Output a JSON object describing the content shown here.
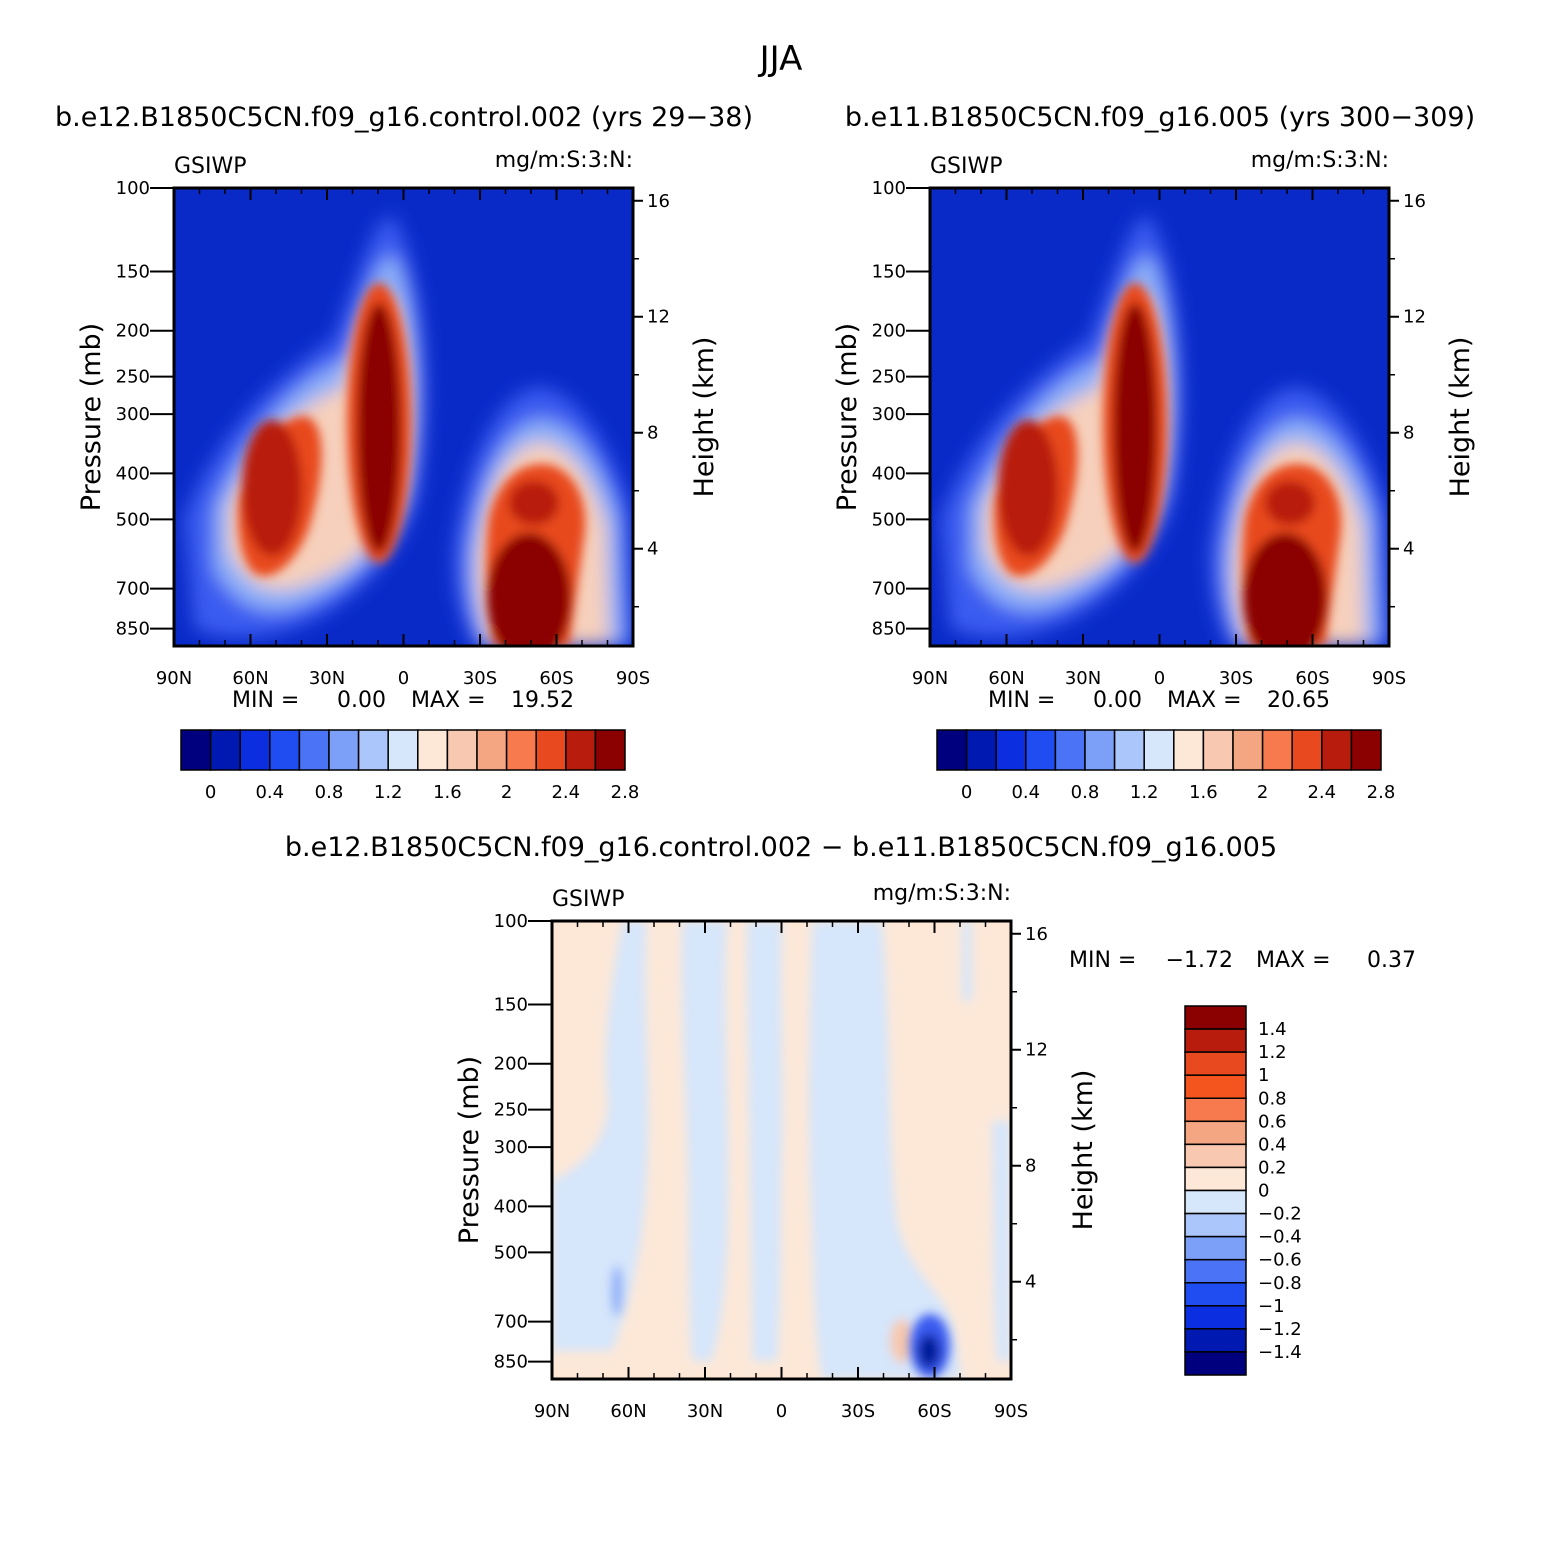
{
  "figure": {
    "title": "JJA"
  },
  "panels": [
    {
      "title": "b.e12.B1850C5CN.f09_g16.control.002 (yrs 29−38)",
      "left_label": "GSIWP",
      "right_label": "mg/m:S:3:N:",
      "ylabel_left": "Pressure (mb)",
      "ylabel_right": "Height (km)",
      "x_ticks": [
        "90N",
        "60N",
        "30N",
        "0",
        "30S",
        "60S",
        "90S"
      ],
      "y_ticks": [
        "100",
        "150",
        "200",
        "250",
        "300",
        "400",
        "500",
        "700",
        "850"
      ],
      "h_ticks": [
        "16",
        "12",
        "8",
        "4"
      ],
      "min_label": "MIN =",
      "min_value": "0.00",
      "max_label": "MAX =",
      "max_value": "19.52",
      "colorbar_labels": [
        "0",
        "0.4",
        "0.8",
        "1.2",
        "1.6",
        "2",
        "2.4",
        "2.8"
      ]
    },
    {
      "title": "b.e11.B1850C5CN.f09_g16.005 (yrs 300−309)",
      "left_label": "GSIWP",
      "right_label": "mg/m:S:3:N:",
      "ylabel_left": "Pressure (mb)",
      "ylabel_right": "Height (km)",
      "x_ticks": [
        "90N",
        "60N",
        "30N",
        "0",
        "30S",
        "60S",
        "90S"
      ],
      "y_ticks": [
        "100",
        "150",
        "200",
        "250",
        "300",
        "400",
        "500",
        "700",
        "850"
      ],
      "h_ticks": [
        "16",
        "12",
        "8",
        "4"
      ],
      "min_label": "MIN =",
      "min_value": "0.00",
      "max_label": "MAX =",
      "max_value": "20.65",
      "colorbar_labels": [
        "0",
        "0.4",
        "0.8",
        "1.2",
        "1.6",
        "2",
        "2.4",
        "2.8"
      ]
    },
    {
      "title": "b.e12.B1850C5CN.f09_g16.control.002 − b.e11.B1850C5CN.f09_g16.005",
      "left_label": "GSIWP",
      "right_label": "mg/m:S:3:N:",
      "ylabel_left": "Pressure (mb)",
      "ylabel_right": "Height (km)",
      "x_ticks": [
        "90N",
        "60N",
        "30N",
        "0",
        "30S",
        "60S",
        "90S"
      ],
      "y_ticks": [
        "100",
        "150",
        "200",
        "250",
        "300",
        "400",
        "500",
        "700",
        "850"
      ],
      "h_ticks": [
        "16",
        "12",
        "8",
        "4"
      ],
      "min_label": "MIN =",
      "min_value": "−1.72",
      "max_label": "MAX =",
      "max_value": "0.37",
      "colorbar_labels": [
        "1.4",
        "1.2",
        "1",
        "0.8",
        "0.6",
        "0.4",
        "0.2",
        "0",
        "−0.2",
        "−0.4",
        "−0.6",
        "−0.8",
        "−1",
        "−1.2",
        "−1.4"
      ]
    }
  ],
  "chart_data": [
    {
      "type": "heatmap",
      "title": "b.e12.B1850C5CN.f09_g16.control.002 (yrs 29−38)",
      "variable": "GSIWP",
      "units": "mg/m:S:3:N:",
      "xlabel": "",
      "ylabel": "Pressure (mb)",
      "ylabel_right": "Height (km)",
      "x_range": [
        90,
        -90
      ],
      "y_range_mb": [
        100,
        850
      ],
      "y_scale": "log",
      "min": 0.0,
      "max": 19.52,
      "colorbar": {
        "levels": [
          0,
          0.2,
          0.4,
          0.6,
          0.8,
          1.0,
          1.2,
          1.4,
          1.6,
          1.8,
          2.0,
          2.2,
          2.4,
          2.6,
          2.8
        ]
      },
      "features": [
        {
          "lat": 45,
          "p": 380,
          "value": 3.0
        },
        {
          "lat": 8,
          "p": 280,
          "value": 3.0
        },
        {
          "lat": -52,
          "p": 780,
          "value": 3.0
        },
        {
          "lat": -48,
          "p": 430,
          "value": 2.7
        }
      ]
    },
    {
      "type": "heatmap",
      "title": "b.e11.B1850C5CN.f09_g16.005 (yrs 300−309)",
      "variable": "GSIWP",
      "units": "mg/m:S:3:N:",
      "xlabel": "",
      "ylabel": "Pressure (mb)",
      "ylabel_right": "Height (km)",
      "x_range": [
        90,
        -90
      ],
      "y_range_mb": [
        100,
        850
      ],
      "y_scale": "log",
      "min": 0.0,
      "max": 20.65,
      "colorbar": {
        "levels": [
          0,
          0.2,
          0.4,
          0.6,
          0.8,
          1.0,
          1.2,
          1.4,
          1.6,
          1.8,
          2.0,
          2.2,
          2.4,
          2.6,
          2.8
        ]
      },
      "features": [
        {
          "lat": 45,
          "p": 380,
          "value": 3.0
        },
        {
          "lat": 8,
          "p": 280,
          "value": 3.0
        },
        {
          "lat": -52,
          "p": 780,
          "value": 3.0
        },
        {
          "lat": -48,
          "p": 430,
          "value": 2.7
        }
      ]
    },
    {
      "type": "heatmap",
      "title": "b.e12.B1850C5CN.f09_g16.control.002 − b.e11.B1850C5CN.f09_g16.005",
      "variable": "GSIWP",
      "units": "mg/m:S:3:N:",
      "xlabel": "",
      "ylabel": "Pressure (mb)",
      "ylabel_right": "Height (km)",
      "x_range": [
        90,
        -90
      ],
      "y_range_mb": [
        100,
        850
      ],
      "y_scale": "log",
      "min": -1.72,
      "max": 0.37,
      "colorbar": {
        "levels": [
          -1.4,
          -1.2,
          -1.0,
          -0.8,
          -0.6,
          -0.4,
          -0.2,
          0,
          0.2,
          0.4,
          0.6,
          0.8,
          1.0,
          1.2,
          1.4
        ]
      },
      "features": [
        {
          "lat": -58,
          "p": 820,
          "value": -1.72
        },
        {
          "lat": -48,
          "p": 760,
          "value": 0.37
        }
      ]
    }
  ]
}
